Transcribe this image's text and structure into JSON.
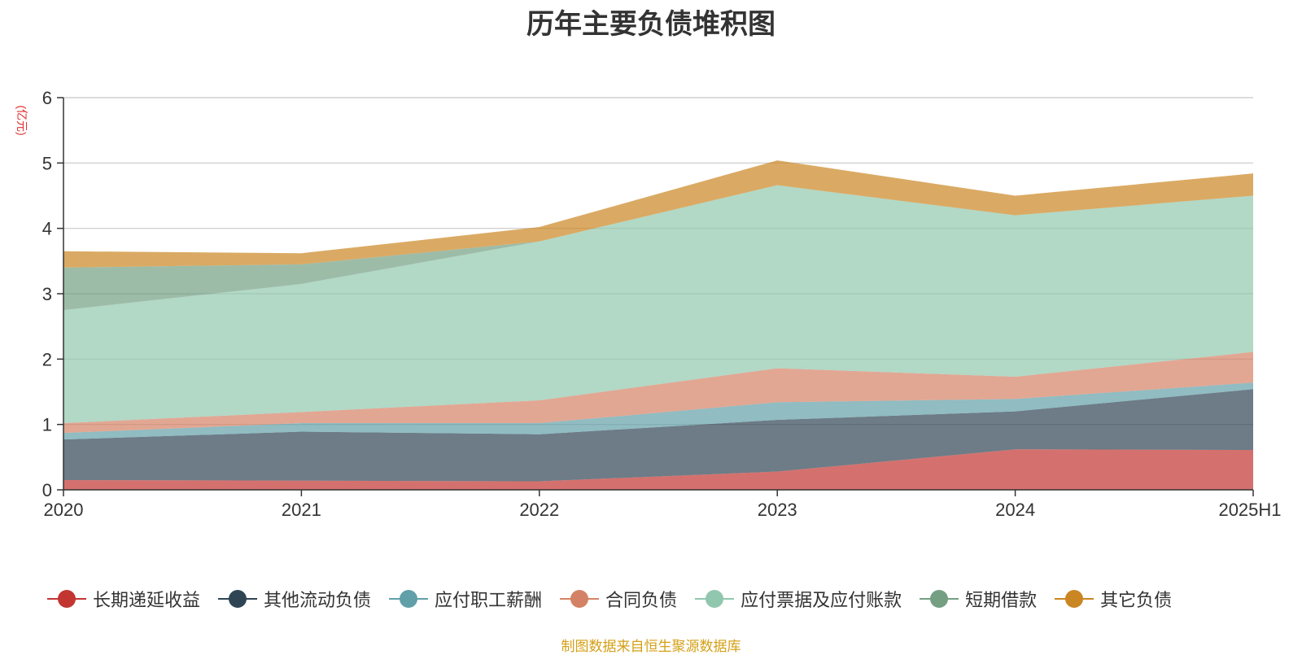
{
  "title": "历年主要负债堆积图",
  "source_note": "制图数据来自恒生聚源数据库",
  "chart_data": {
    "type": "area",
    "stacked": true,
    "title": "历年主要负债堆积图",
    "unit_label": "(亿元)",
    "categories": [
      "2020",
      "2021",
      "2022",
      "2023",
      "2024",
      "2025H1"
    ],
    "ylim": [
      0,
      6
    ],
    "yticks": [
      "0",
      "1",
      "2",
      "3",
      "4",
      "5",
      "6"
    ],
    "grid": true,
    "legend_position": "bottom",
    "series": [
      {
        "name": "长期递延收益",
        "color": "#c23531",
        "values": [
          0.15,
          0.14,
          0.13,
          0.28,
          0.62,
          0.61
        ]
      },
      {
        "name": "其他流动负债",
        "color": "#2f4554",
        "values": [
          0.62,
          0.75,
          0.72,
          0.79,
          0.58,
          0.93
        ]
      },
      {
        "name": "应付职工薪酬",
        "color": "#61a0a8",
        "values": [
          0.1,
          0.13,
          0.17,
          0.27,
          0.19,
          0.1
        ]
      },
      {
        "name": "合同负债",
        "color": "#d48265",
        "values": [
          0.15,
          0.17,
          0.35,
          0.52,
          0.34,
          0.47
        ]
      },
      {
        "name": "应付票据及应付账款",
        "color": "#91c7ae",
        "values": [
          1.73,
          1.96,
          2.43,
          2.8,
          2.47,
          2.39
        ]
      },
      {
        "name": "短期借款",
        "color": "#749f83",
        "values": [
          0.65,
          0.3,
          0.0,
          0.0,
          0.0,
          0.0
        ]
      },
      {
        "name": "其它负债",
        "color": "#ca8622",
        "values": [
          0.25,
          0.17,
          0.22,
          0.38,
          0.3,
          0.34
        ]
      }
    ]
  }
}
